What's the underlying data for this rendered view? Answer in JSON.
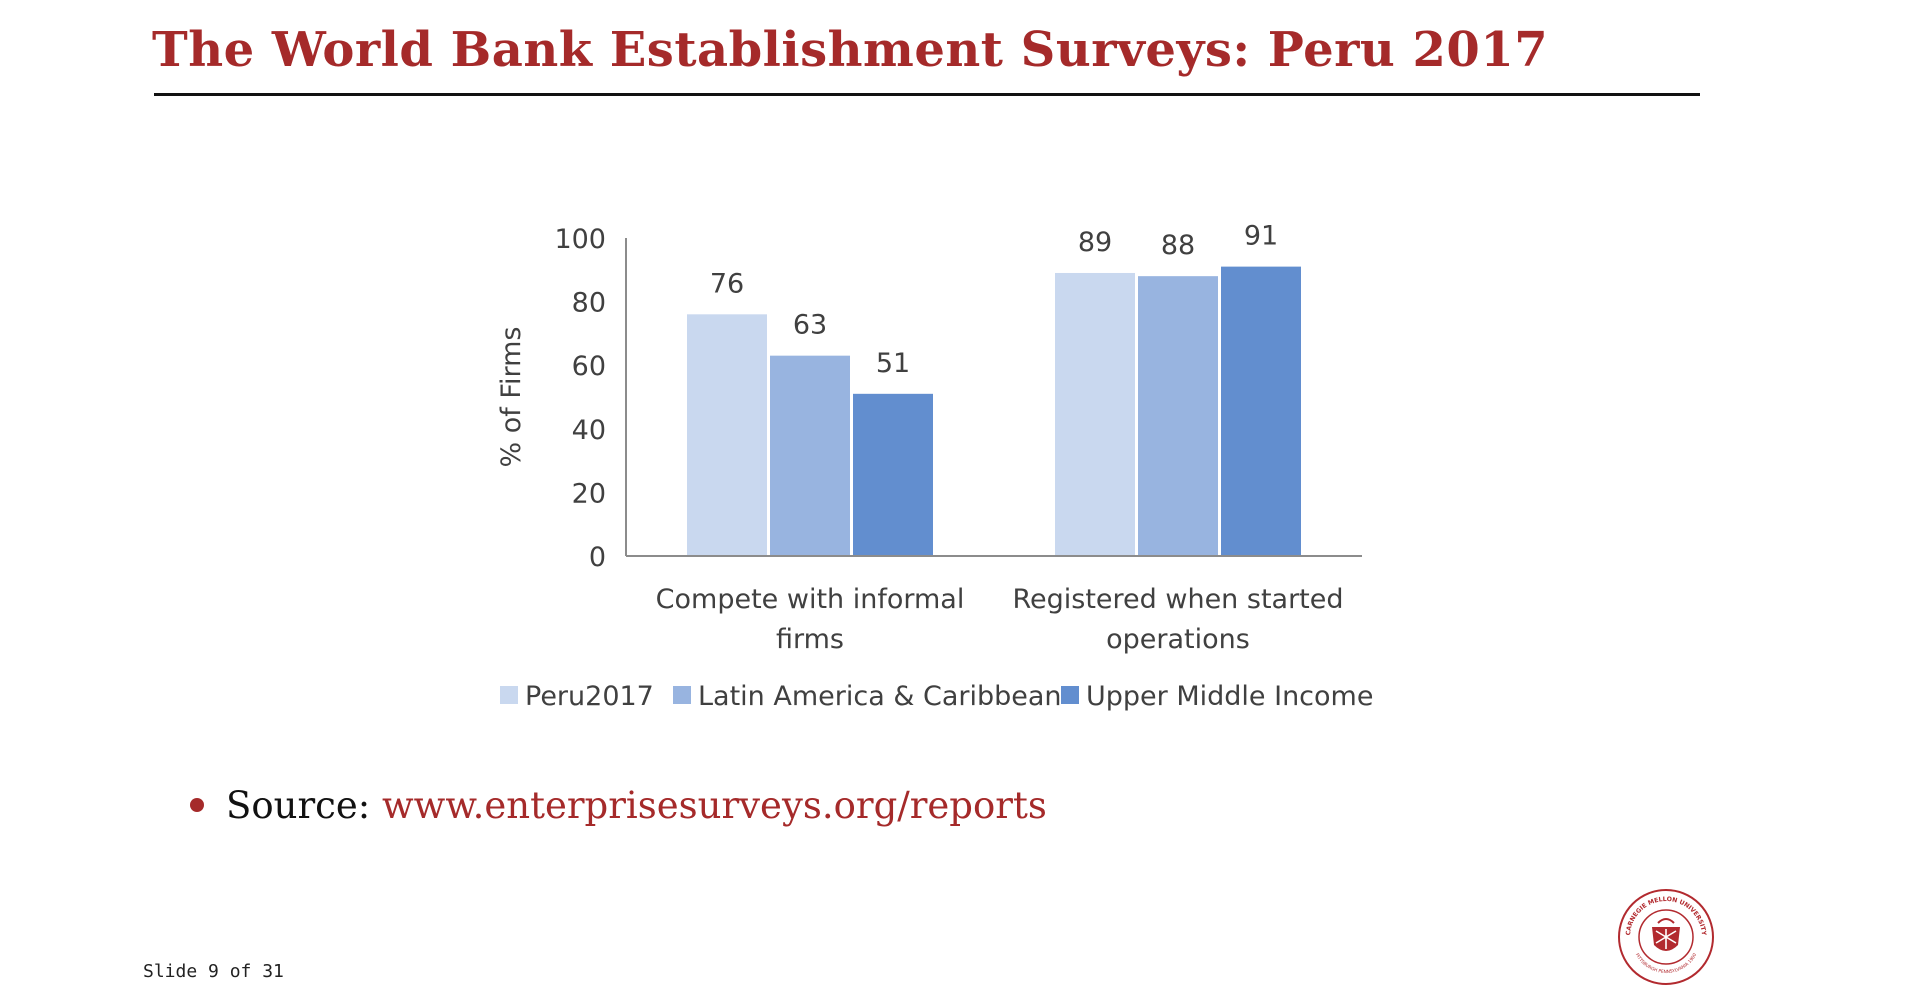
{
  "slide": {
    "title": "The World Bank Establishment Surveys: Peru 2017",
    "source_label": "Source:",
    "source_link": "www.enterprisesurveys.org/reports",
    "footer": "Slide 9 of 31",
    "logo_text": "CARNEGIE MELLON UNIVERSITY · PITTSBURGH PENNSYLVANIA 1900"
  },
  "colors": {
    "title": "#a52a2a",
    "series": [
      "#c9d8ef",
      "#98b4e0",
      "#628ecf"
    ]
  },
  "chart_data": {
    "type": "bar",
    "title": "",
    "xlabel": "",
    "ylabel": "% of Firms",
    "ylim": [
      0,
      100
    ],
    "yticks": [
      0,
      20,
      40,
      60,
      80,
      100
    ],
    "grid": false,
    "legend_position": "bottom",
    "categories": [
      [
        "Compete with informal",
        "firms"
      ],
      [
        "Registered when started",
        "operations"
      ]
    ],
    "series": [
      {
        "name": "Peru2017",
        "values": [
          76,
          89
        ]
      },
      {
        "name": "Latin America & Caribbean",
        "values": [
          63,
          88
        ]
      },
      {
        "name": "Upper Middle Income",
        "values": [
          51,
          91
        ]
      }
    ]
  }
}
